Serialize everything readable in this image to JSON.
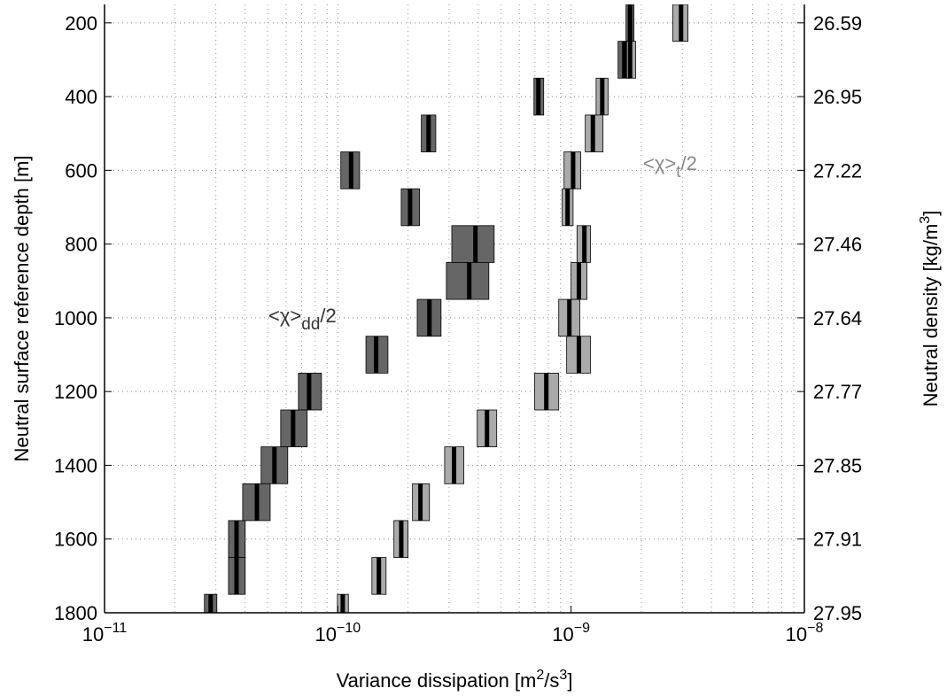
{
  "chart_data": {
    "type": "range-box",
    "xlabel": [
      {
        "t": "Variance dissipation [m"
      },
      {
        "t": "2",
        "sup": true
      },
      {
        "t": "/s"
      },
      {
        "t": "3",
        "sup": true
      },
      {
        "t": "]"
      }
    ],
    "ylabel": "Neutral surface reference depth [m]",
    "y2label": [
      {
        "t": "Neutral density [kg/m"
      },
      {
        "t": "3",
        "sup": true
      },
      {
        "t": "]"
      }
    ],
    "xlog": true,
    "grid": true,
    "xlim": [
      1e-11,
      1e-08
    ],
    "xticks": [
      {
        "value": 1e-11,
        "label": "10",
        "exp": "−11"
      },
      {
        "value": 1e-10,
        "label": "10",
        "exp": "−10"
      },
      {
        "value": 1e-09,
        "label": "10",
        "exp": "−9"
      },
      {
        "value": 1e-08,
        "label": "10",
        "exp": "−8"
      }
    ],
    "xminor": [
      2e-11,
      3e-11,
      4e-11,
      5e-11,
      6e-11,
      7e-11,
      8e-11,
      9e-11,
      2e-10,
      3e-10,
      4e-10,
      5e-10,
      6e-10,
      7e-10,
      8e-10,
      9e-10,
      2e-09,
      3e-09,
      4e-09,
      5e-09,
      6e-09,
      7e-09,
      8e-09,
      9e-09
    ],
    "ylim": [
      150,
      1800
    ],
    "y_reversed": true,
    "yticks": [
      200,
      400,
      600,
      800,
      1000,
      1200,
      1400,
      1600,
      1800
    ],
    "y2tick_depths": [
      200,
      400,
      600,
      800,
      1000,
      1200,
      1400,
      1600,
      1800
    ],
    "y2tick_labels": [
      "26.59",
      "26.95",
      "27.22",
      "27.46",
      "27.64",
      "27.77",
      "27.85",
      "27.91",
      "27.95"
    ],
    "depth": [
      200,
      300,
      400,
      500,
      600,
      700,
      800,
      900,
      1000,
      1100,
      1200,
      1300,
      1400,
      1500,
      1600,
      1700,
      1800
    ],
    "median_color": "#000000",
    "series": [
      {
        "color": "#666666",
        "low": [
          1.72e-09,
          1.59e-09,
          6.93e-10,
          2.28e-10,
          1.03e-10,
          1.87e-10,
          3.08e-10,
          2.92e-10,
          2.19e-10,
          1.32e-10,
          6.78e-11,
          5.69e-11,
          4.69e-11,
          3.91e-11,
          3.4e-11,
          3.4e-11,
          2.68e-11
        ],
        "values": [
          1.79e-09,
          1.69e-09,
          7.24e-10,
          2.45e-10,
          1.14e-10,
          2.04e-10,
          3.89e-10,
          3.66e-10,
          2.47e-10,
          1.46e-10,
          7.53e-11,
          6.43e-11,
          5.35e-11,
          4.5e-11,
          3.68e-11,
          3.68e-11,
          2.85e-11
        ],
        "high": [
          1.86e-09,
          1.79e-09,
          7.63e-10,
          2.63e-10,
          1.24e-10,
          2.24e-10,
          4.68e-10,
          4.44e-10,
          2.77e-10,
          1.64e-10,
          8.51e-11,
          7.39e-11,
          6.1e-11,
          5.13e-11,
          4.01e-11,
          4.01e-11,
          3.03e-11
        ]
      },
      {
        "color": "#aaaaaa",
        "low": [
          2.73e-09,
          1.73e-09,
          1.28e-09,
          1.15e-09,
          9.33e-10,
          9.16e-10,
          1.06e-09,
          1e-09,
          8.85e-10,
          9.57e-10,
          6.98e-10,
          3.96e-10,
          2.87e-10,
          2.09e-10,
          1.74e-10,
          1.4e-10,
          9.96e-11
        ],
        "values": [
          2.96e-09,
          1.79e-09,
          1.36e-09,
          1.24e-09,
          1.02e-09,
          9.66e-10,
          1.14e-09,
          1.08e-09,
          9.83e-10,
          1.08e-09,
          7.83e-10,
          4.36e-10,
          3.15e-10,
          2.26e-10,
          1.87e-10,
          1.5e-10,
          1.05e-10
        ],
        "high": [
          3.17e-09,
          1.89e-09,
          1.44e-09,
          1.37e-09,
          1.1e-09,
          1.02e-09,
          1.21e-09,
          1.17e-09,
          1.09e-09,
          1.21e-09,
          8.85e-10,
          4.8e-10,
          3.47e-10,
          2.47e-10,
          2e-10,
          1.61e-10,
          1.11e-10
        ]
      }
    ],
    "annotations": [
      {
        "text": "<χ>",
        "sub": "dd",
        "after": "/2",
        "color": "#333333"
      },
      {
        "text": "<χ>",
        "sub": "t",
        "after": "/2",
        "color": "#888888"
      }
    ]
  }
}
